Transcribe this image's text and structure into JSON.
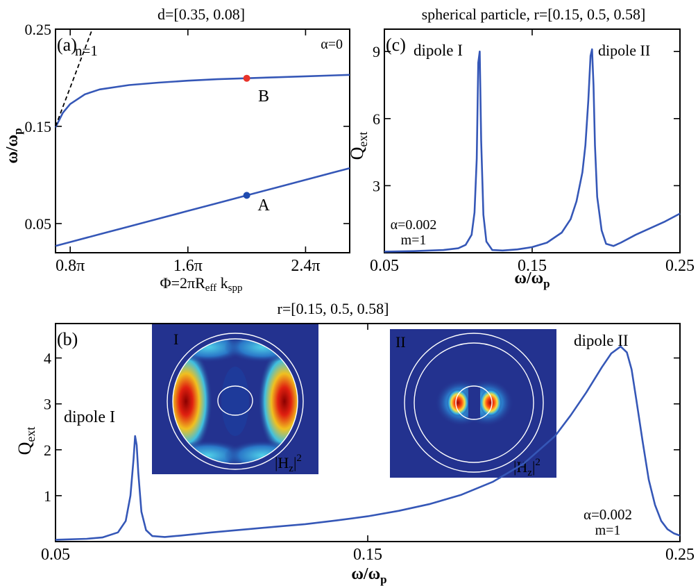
{
  "colors": {
    "curve": "#3557b7",
    "label_blue": "#3557b7",
    "label_red": "#e8332a",
    "point_B": "#e8332a",
    "point_A": "#1f4bb0",
    "inset_background": "#23328f"
  },
  "chart_data": [
    {
      "id": "a",
      "type": "line",
      "panel_label": "(a)",
      "title": "d=[0.35, 0.08]",
      "xlabel_main": "Φ=2πR",
      "xlabel_sub1": "eff",
      "xlabel_mid": " k",
      "xlabel_sub2": "spp",
      "ylabel_main": "ω/ω",
      "ylabel_sub": "p",
      "xlim_pi": [
        0.7,
        2.7
      ],
      "ylim": [
        0.02,
        0.25
      ],
      "xticks": [
        {
          "value_pi": 0.8,
          "label": "0.8π"
        },
        {
          "value_pi": 1.6,
          "label": "1.6π"
        },
        {
          "value_pi": 2.4,
          "label": "2.4π"
        }
      ],
      "yticks": [
        {
          "value": 0.05,
          "label": "0.05"
        },
        {
          "value": 0.15,
          "label": "0.15"
        },
        {
          "value": 0.25,
          "label": "0.25"
        }
      ],
      "annotations": {
        "alpha": "α=0",
        "light_line": "n=1"
      },
      "series": [
        {
          "role": "upper-branch",
          "x_pi": [
            0.7,
            0.75,
            0.8,
            0.9,
            1.0,
            1.2,
            1.4,
            1.6,
            1.8,
            2.0,
            2.2,
            2.4,
            2.6,
            2.7
          ],
          "y": [
            0.149,
            0.164,
            0.173,
            0.183,
            0.188,
            0.1925,
            0.195,
            0.197,
            0.1985,
            0.1995,
            0.2005,
            0.2015,
            0.2025,
            0.203
          ]
        },
        {
          "role": "lower-branch",
          "x_pi": [
            0.7,
            0.8,
            1.0,
            1.2,
            1.4,
            1.6,
            1.8,
            2.0,
            2.2,
            2.4,
            2.6,
            2.7
          ],
          "y": [
            0.027,
            0.031,
            0.039,
            0.047,
            0.055,
            0.063,
            0.071,
            0.079,
            0.087,
            0.095,
            0.103,
            0.107
          ]
        },
        {
          "role": "light-line",
          "x_pi": [
            0.7,
            0.95
          ],
          "y": [
            0.15,
            0.25
          ]
        }
      ],
      "points": [
        {
          "label": "B",
          "x_pi": 2.0,
          "y": 0.1995
        },
        {
          "label": "A",
          "x_pi": 2.0,
          "y": 0.079
        }
      ]
    },
    {
      "id": "c",
      "type": "line",
      "panel_label": "(c)",
      "title": "spherical particle, r=[0.15, 0.5, 0.58]",
      "xlabel_main": "ω/ω",
      "xlabel_sub": "p",
      "ylabel_main": "Q",
      "ylabel_sub": "ext",
      "xlim": [
        0.05,
        0.25
      ],
      "ylim": [
        0,
        10
      ],
      "xticks": [
        {
          "value": 0.05,
          "label": "0.05"
        },
        {
          "value": 0.15,
          "label": "0.15"
        },
        {
          "value": 0.25,
          "label": "0.25"
        }
      ],
      "yticks": [
        {
          "value": 3,
          "label": "3"
        },
        {
          "value": 6,
          "label": "6"
        },
        {
          "value": 9,
          "label": "9"
        }
      ],
      "annotations": {
        "peak1": "dipole I",
        "peak2": "dipole II",
        "alpha": "α=0.002",
        "m": "m=1"
      },
      "series": [
        {
          "role": "Qext",
          "x": [
            0.05,
            0.07,
            0.09,
            0.1,
            0.105,
            0.109,
            0.111,
            0.1125,
            0.1135,
            0.1145,
            0.1155,
            0.117,
            0.119,
            0.123,
            0.13,
            0.14,
            0.15,
            0.16,
            0.17,
            0.176,
            0.18,
            0.184,
            0.186,
            0.188,
            0.1895,
            0.1905,
            0.1915,
            0.1925,
            0.194,
            0.197,
            0.2,
            0.205,
            0.21,
            0.22,
            0.23,
            0.24,
            0.25
          ],
          "y": [
            0.05,
            0.07,
            0.12,
            0.2,
            0.35,
            0.8,
            1.8,
            4.2,
            8.5,
            9.0,
            5.0,
            1.7,
            0.5,
            0.12,
            0.1,
            0.15,
            0.25,
            0.45,
            0.9,
            1.5,
            2.3,
            3.6,
            4.8,
            6.8,
            8.8,
            9.1,
            7.5,
            4.8,
            2.5,
            1.0,
            0.4,
            0.3,
            0.45,
            0.8,
            1.1,
            1.4,
            1.75
          ]
        }
      ]
    },
    {
      "id": "b",
      "type": "line",
      "panel_label": "(b)",
      "title": "r=[0.15, 0.5, 0.58]",
      "xlabel_main": "ω/ω",
      "xlabel_sub": "p",
      "ylabel_main": "Q",
      "ylabel_sub": "ext",
      "xlim": [
        0.05,
        0.25
      ],
      "ylim": [
        0,
        4.75
      ],
      "xticks": [
        {
          "value": 0.05,
          "label": "0.05"
        },
        {
          "value": 0.15,
          "label": "0.15"
        },
        {
          "value": 0.25,
          "label": "0.25"
        }
      ],
      "yticks": [
        {
          "value": 1,
          "label": "1"
        },
        {
          "value": 2,
          "label": "2"
        },
        {
          "value": 3,
          "label": "3"
        },
        {
          "value": 4,
          "label": "4"
        }
      ],
      "annotations": {
        "peak1": "dipole I",
        "peak2": "dipole II",
        "alpha": "α=0.002",
        "m": "m=1"
      },
      "insets": [
        {
          "label": "I",
          "field": "|H",
          "field_sub": "z",
          "field_end": "|",
          "field_sup": "2"
        },
        {
          "label": "II",
          "field": "|H",
          "field_sub": "z",
          "field_end": "|",
          "field_sup": "2"
        }
      ],
      "series": [
        {
          "role": "Qext",
          "x": [
            0.05,
            0.06,
            0.065,
            0.07,
            0.0725,
            0.074,
            0.075,
            0.0755,
            0.076,
            0.0765,
            0.0775,
            0.079,
            0.081,
            0.085,
            0.09,
            0.1,
            0.11,
            0.12,
            0.13,
            0.14,
            0.15,
            0.16,
            0.17,
            0.18,
            0.19,
            0.2,
            0.21,
            0.215,
            0.22,
            0.225,
            0.228,
            0.231,
            0.233,
            0.2345,
            0.236,
            0.238,
            0.24,
            0.242,
            0.244,
            0.246,
            0.248,
            0.25
          ],
          "y": [
            0.04,
            0.06,
            0.09,
            0.2,
            0.45,
            1.0,
            1.8,
            2.3,
            2.1,
            1.5,
            0.65,
            0.25,
            0.12,
            0.1,
            0.13,
            0.2,
            0.26,
            0.32,
            0.38,
            0.46,
            0.55,
            0.67,
            0.82,
            1.02,
            1.3,
            1.7,
            2.3,
            2.75,
            3.25,
            3.8,
            4.1,
            4.25,
            4.12,
            3.75,
            3.1,
            2.2,
            1.35,
            0.8,
            0.45,
            0.27,
            0.18,
            0.13
          ]
        }
      ]
    }
  ]
}
